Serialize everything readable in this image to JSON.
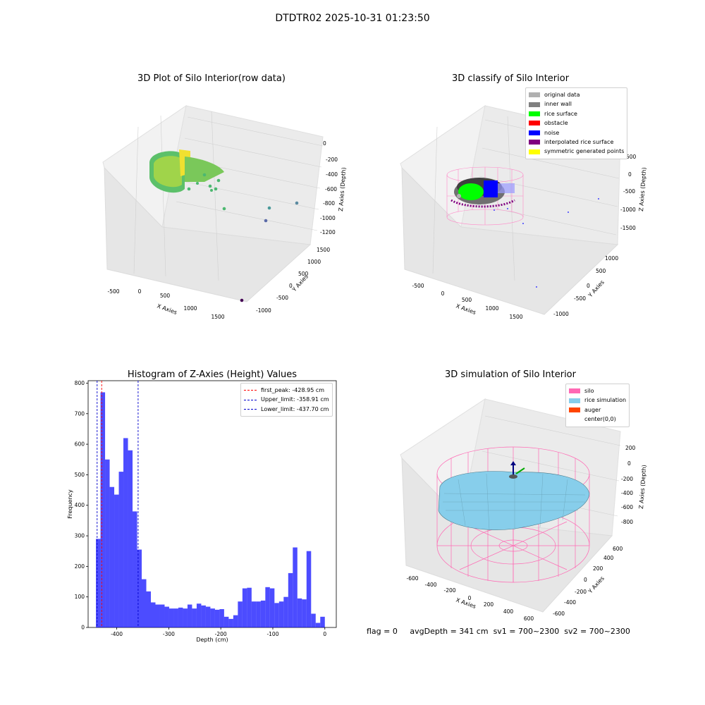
{
  "suptitle": "DTDTR02 2025-10-31 01:23:50",
  "panels": {
    "raw": {
      "title": "3D Plot of Silo Interior(row data)",
      "xlabel": "X Axies",
      "ylabel": "Y Axies",
      "zlabel": "Z Axies (Depth)",
      "x_ticks": [
        "-500",
        "0",
        "500",
        "1000",
        "1500"
      ],
      "y_ticks": [
        "-1000",
        "-500",
        "0",
        "500",
        "1000",
        "1500"
      ],
      "z_ticks": [
        "0",
        "-200",
        "-400",
        "-600",
        "-800",
        "-1000",
        "-1200"
      ]
    },
    "classify": {
      "title": "3D classify of Silo Interior",
      "xlabel": "X Axies",
      "ylabel": "Y Axies",
      "zlabel": "Z Axies (Depth)",
      "x_ticks": [
        "-500",
        "0",
        "500",
        "1000",
        "1500"
      ],
      "y_ticks": [
        "-1000",
        "-500",
        "0",
        "500",
        "1000"
      ],
      "z_ticks": [
        "500",
        "0",
        "-500",
        "-1000",
        "-1500"
      ],
      "legend": [
        {
          "label": "original data",
          "color": "#b0b0b0"
        },
        {
          "label": "inner wall",
          "color": "#808080"
        },
        {
          "label": "rice surface",
          "color": "#00ff00"
        },
        {
          "label": "obstacle",
          "color": "#ff0000"
        },
        {
          "label": "noise",
          "color": "#0000ff"
        },
        {
          "label": "interpolated rice surface",
          "color": "#800080"
        },
        {
          "label": "symmetric generated points",
          "color": "#ffff00"
        }
      ]
    },
    "simulation": {
      "title": "3D simulation of Silo Interior",
      "xlabel": "X Axies",
      "ylabel": "Y Axies",
      "zlabel": "Z Axies (Depth)",
      "x_ticks": [
        "-600",
        "-400",
        "-200",
        "0",
        "200",
        "400",
        "600"
      ],
      "y_ticks": [
        "-600",
        "-400",
        "-200",
        "0",
        "200",
        "400",
        "600"
      ],
      "z_ticks": [
        "200",
        "0",
        "-200",
        "-400",
        "-600",
        "-800"
      ],
      "legend": [
        {
          "label": "silo",
          "color": "#ff69b4"
        },
        {
          "label": "rice simulation",
          "color": "#87ceeb"
        },
        {
          "label": "auger",
          "color": "#ff4500"
        },
        {
          "label": "center(0,0)",
          "color": "#ffffff"
        }
      ]
    }
  },
  "histogram": {
    "title": "Histogram of Z-Axies (Height) Values",
    "legend": [
      {
        "label": "first_peak: -428.95 cm",
        "color": "#ff0000"
      },
      {
        "label": "Upper_limit: -358.91 cm",
        "color": "#0000cc"
      },
      {
        "label": "Lower_limit: -437.70 cm",
        "color": "#0000cc"
      }
    ]
  },
  "chart_data": {
    "type": "bar",
    "title": "Histogram of Z-Axies (Height) Values",
    "xlabel": "Depth (cm)",
    "ylabel": "Frequency",
    "xlim": [
      -455,
      22
    ],
    "ylim": [
      0,
      808
    ],
    "x_ticks": [
      -400,
      -300,
      -200,
      -100,
      0
    ],
    "y_ticks": [
      0,
      100,
      200,
      300,
      400,
      500,
      600,
      700,
      800
    ],
    "bin_start": -440,
    "bin_width": 8.8,
    "values": [
      290,
      770,
      550,
      460,
      435,
      510,
      620,
      580,
      380,
      255,
      158,
      118,
      82,
      75,
      75,
      68,
      62,
      62,
      65,
      62,
      75,
      62,
      78,
      72,
      68,
      62,
      58,
      60,
      35,
      28,
      40,
      85,
      128,
      130,
      85,
      85,
      88,
      132,
      128,
      80,
      85,
      100,
      178,
      262,
      95,
      92,
      250,
      45,
      15,
      35
    ],
    "color": "#0000ff",
    "vlines": [
      {
        "x": -428.95,
        "color": "#ff0000"
      },
      {
        "x": -358.91,
        "color": "#0000cc"
      },
      {
        "x": -437.7,
        "color": "#0000cc"
      }
    ]
  },
  "status": {
    "flag": "flag = 0",
    "avg_depth": "avgDepth = 341 cm",
    "sv1": "sv1 = 700~2300",
    "sv2": "sv2 = 700~2300"
  }
}
